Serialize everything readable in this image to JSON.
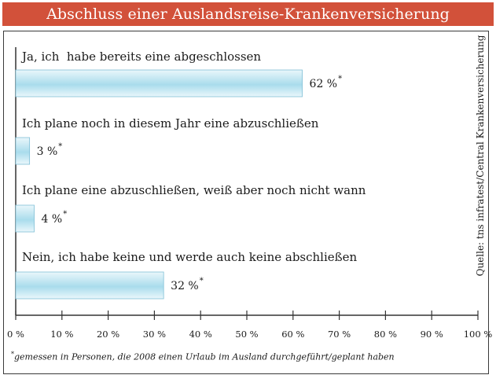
{
  "title": "Abschluss einer Auslandsreise-Krankenversicherung",
  "source": "Quelle: tns infratest/Central Krankenversicherung",
  "footnote": {
    "marker": "*",
    "text": "gemessen in Personen, die 2008 einen Urlaub im Ausland durchgeführt/geplant haben"
  },
  "colors": {
    "title_bg": "#d2513a",
    "bar_light": "#eaf7fb",
    "bar_dark": "#a9dcec",
    "bar_border": "#7fbfd6"
  },
  "chart_data": {
    "type": "bar",
    "orientation": "horizontal",
    "categories": [
      "Ja, ich  habe bereits eine abgeschlossen",
      "Ich plane noch in diesem Jahr eine abzuschließen",
      "Ich plane eine abzuschließen, weiß aber noch nicht wann",
      "Nein, ich habe keine und werde auch keine abschließen"
    ],
    "values": [
      62,
      3,
      4,
      32
    ],
    "value_labels": [
      "62 %",
      "3 %",
      "4 %",
      "32 %"
    ],
    "value_label_marker": "*",
    "xlim": [
      0,
      100
    ],
    "ticks": [
      0,
      10,
      20,
      30,
      40,
      50,
      60,
      70,
      80,
      90,
      100
    ],
    "tick_labels": [
      "0 %",
      "10 %",
      "20 %",
      "30 %",
      "40 %",
      "50 %",
      "60 %",
      "70 %",
      "80 %",
      "90 %",
      "100 %"
    ],
    "grid": false
  }
}
